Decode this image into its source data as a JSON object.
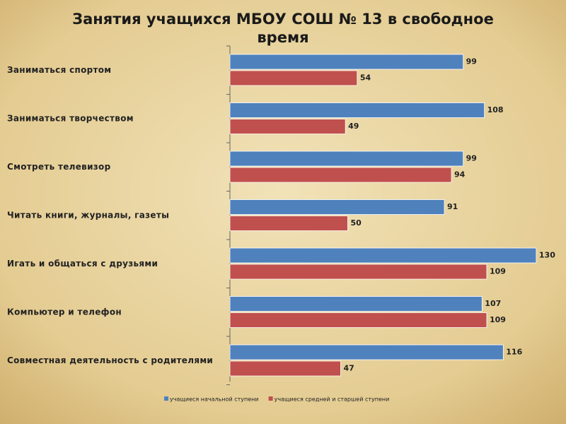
{
  "chart_data": {
    "type": "hbar",
    "title": "Занятия учащихся МБОУ СОШ № 13 в свободное время",
    "categories": [
      "Заниматься спортом",
      "Заниматься творчеством",
      "Смотреть телевизор",
      "Читать книги, журналы, газеты",
      "Игать и общаться с друзьями",
      "Компьютер и телефон",
      "Совместная деятельность с родителями"
    ],
    "series": [
      {
        "name": "учащиеся начальной ступени",
        "color": "#4f81bd",
        "values": [
          99,
          108,
          99,
          91,
          130,
          107,
          116
        ]
      },
      {
        "name": "учащиеся средней и старшей ступени",
        "color": "#c0504d",
        "values": [
          54,
          49,
          94,
          50,
          109,
          109,
          47
        ]
      }
    ],
    "legend": "bottom"
  }
}
